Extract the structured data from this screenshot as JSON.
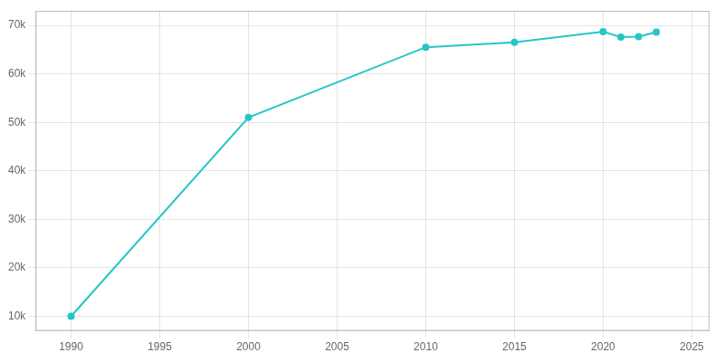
{
  "chart_data": {
    "type": "line",
    "x": [
      1990,
      2000,
      2010,
      2015,
      2020,
      2021,
      2022,
      2023
    ],
    "values": [
      10000,
      51000,
      65500,
      66500,
      68700,
      67600,
      67700,
      68600
    ],
    "color": "#26C6C6",
    "marker": "circle",
    "xlim": [
      1988,
      2026
    ],
    "ylim": [
      7000,
      73000
    ],
    "xticks": [
      1990,
      1995,
      2000,
      2005,
      2010,
      2015,
      2020,
      2025
    ],
    "yticks": [
      {
        "value": 10000,
        "label": "10k"
      },
      {
        "value": 20000,
        "label": "20k"
      },
      {
        "value": 30000,
        "label": "30k"
      },
      {
        "value": 40000,
        "label": "40k"
      },
      {
        "value": 50000,
        "label": "50k"
      },
      {
        "value": 60000,
        "label": "60k"
      },
      {
        "value": 70000,
        "label": "70k"
      }
    ],
    "grid": true
  }
}
